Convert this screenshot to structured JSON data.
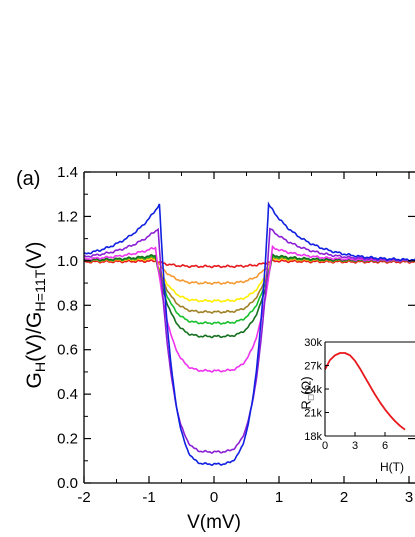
{
  "chart_data": [
    {
      "panel_label": "(a)",
      "type": "line",
      "xlabel": "V(mV)",
      "ylabel": {
        "g": "G",
        "sub1": "H",
        "mid": "(V)/G",
        "sub2": "H=11T",
        "end": "(V)"
      },
      "xlim": [
        -2,
        3.2
      ],
      "ylim": [
        0.0,
        1.4
      ],
      "x_ticks": [
        "-2",
        "-1",
        "0",
        "1",
        "2",
        "3"
      ],
      "y_ticks": [
        "0.0",
        "0.2",
        "0.4",
        "0.6",
        "0.8",
        "1.0",
        "1.2",
        "1.4"
      ],
      "grid": false,
      "series": [
        {
          "color": "#e8171b",
          "min": 0.975,
          "peak": 1.0,
          "tail": 0.995,
          "width": 0.9
        },
        {
          "color": "#f59a30",
          "min": 0.9,
          "peak": 1.01,
          "tail": 1.0,
          "width": 0.9
        },
        {
          "color": "#ffee00",
          "min": 0.82,
          "peak": 1.01,
          "tail": 1.0,
          "width": 0.9
        },
        {
          "color": "#a08025",
          "min": 0.77,
          "peak": 1.015,
          "tail": 1.0,
          "width": 0.9
        },
        {
          "color": "#17c02c",
          "min": 0.72,
          "peak": 1.02,
          "tail": 1.0,
          "width": 0.9
        },
        {
          "color": "#15711f",
          "min": 0.66,
          "peak": 1.025,
          "tail": 1.0,
          "width": 0.9
        },
        {
          "color": "#ee33ee",
          "min": 0.505,
          "peak": 1.06,
          "tail": 1.0,
          "width": 0.9
        },
        {
          "color": "#8b1fd6",
          "min": 0.14,
          "peak": 1.145,
          "tail": 1.0,
          "width": 0.86
        },
        {
          "color": "#1020e0",
          "min": 0.085,
          "peak": 1.255,
          "tail": 1.0,
          "width": 0.84
        }
      ]
    },
    {
      "type": "line",
      "inset": true,
      "xlabel": "H(T)",
      "ylabel": {
        "r": "R",
        "sub": "□",
        "end": "(Ω)"
      },
      "xlim": [
        0,
        9
      ],
      "ylim": [
        17000,
        30000
      ],
      "x_ticks": [
        "0",
        "3",
        "6"
      ],
      "y_ticks": [
        "18k",
        "21k",
        "24k",
        "27k",
        "30k"
      ],
      "series": [
        {
          "color": "#e8171b",
          "x": [
            0,
            0.5,
            1,
            1.5,
            2,
            2.5,
            3,
            3.5,
            4,
            4.5,
            5,
            5.5,
            6,
            6.5,
            7,
            7.5,
            8
          ],
          "y": [
            26500,
            27700,
            28300,
            28600,
            28600,
            28300,
            27600,
            26600,
            25500,
            24400,
            23300,
            22300,
            21400,
            20600,
            19900,
            19300,
            18800
          ]
        }
      ]
    }
  ]
}
